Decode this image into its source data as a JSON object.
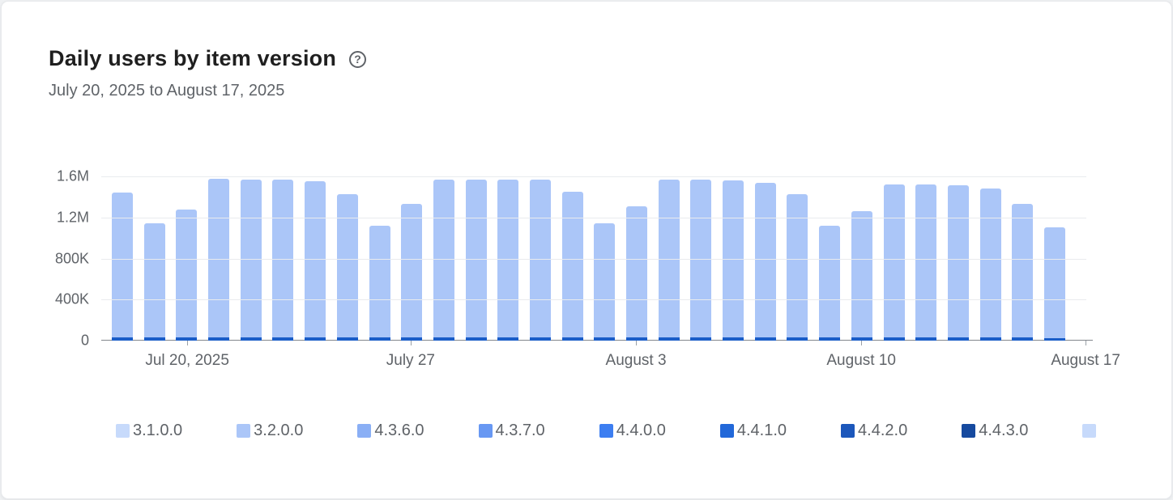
{
  "card": {
    "title": "Daily users by item version",
    "subtitle": "July 20, 2025 to August 17, 2025"
  },
  "chart_data": {
    "type": "bar",
    "stacked": true,
    "title": "Daily users by item version",
    "date_range_label": "July 20, 2025 to August 17, 2025",
    "ylim": [
      0,
      1600000
    ],
    "grid": true,
    "legend_position": "bottom",
    "colors": {
      "bar_light": "#abc6f8",
      "bar_dark_base": "#1a5dc8",
      "gridline": "#e9ebee",
      "baseline": "#82878c",
      "tick": "#9aa0a6"
    },
    "y_ticks": [
      {
        "value": 1600000,
        "label": "1.6M"
      },
      {
        "value": 1200000,
        "label": "1.2M"
      },
      {
        "value": 800000,
        "label": "800K"
      },
      {
        "value": 400000,
        "label": "400K"
      },
      {
        "value": 0,
        "label": "0"
      }
    ],
    "x_ticks": [
      {
        "label": "Jul 20, 2025",
        "position_pct": 8.7
      },
      {
        "label": "July 27",
        "position_pct": 31.3
      },
      {
        "label": "August 3",
        "position_pct": 54.1
      },
      {
        "label": "August 10",
        "position_pct": 76.9
      },
      {
        "label": "August 17",
        "position_pct": 99.6
      }
    ],
    "bars": [
      {
        "total": 1440000,
        "dark_base": 32000
      },
      {
        "total": 1140000,
        "dark_base": 30000
      },
      {
        "total": 1280000,
        "dark_base": 30000
      },
      {
        "total": 1580000,
        "dark_base": 34000
      },
      {
        "total": 1570000,
        "dark_base": 34000
      },
      {
        "total": 1570000,
        "dark_base": 34000
      },
      {
        "total": 1550000,
        "dark_base": 34000
      },
      {
        "total": 1430000,
        "dark_base": 32000
      },
      {
        "total": 1120000,
        "dark_base": 28000
      },
      {
        "total": 1330000,
        "dark_base": 30000
      },
      {
        "total": 1570000,
        "dark_base": 34000
      },
      {
        "total": 1570000,
        "dark_base": 34000
      },
      {
        "total": 1570000,
        "dark_base": 34000
      },
      {
        "total": 1570000,
        "dark_base": 34000
      },
      {
        "total": 1450000,
        "dark_base": 32000
      },
      {
        "total": 1140000,
        "dark_base": 28000
      },
      {
        "total": 1310000,
        "dark_base": 30000
      },
      {
        "total": 1570000,
        "dark_base": 34000
      },
      {
        "total": 1570000,
        "dark_base": 34000
      },
      {
        "total": 1560000,
        "dark_base": 34000
      },
      {
        "total": 1540000,
        "dark_base": 34000
      },
      {
        "total": 1430000,
        "dark_base": 32000
      },
      {
        "total": 1120000,
        "dark_base": 28000
      },
      {
        "total": 1260000,
        "dark_base": 30000
      },
      {
        "total": 1520000,
        "dark_base": 34000
      },
      {
        "total": 1520000,
        "dark_base": 34000
      },
      {
        "total": 1510000,
        "dark_base": 34000
      },
      {
        "total": 1480000,
        "dark_base": 32000
      },
      {
        "total": 1330000,
        "dark_base": 30000
      },
      {
        "total": 1100000,
        "dark_base": 26000
      }
    ],
    "legend": [
      {
        "label": "3.1.0.0",
        "color": "#c7dafb"
      },
      {
        "label": "3.2.0.0",
        "color": "#abc6f8"
      },
      {
        "label": "4.3.6.0",
        "color": "#8aaff5"
      },
      {
        "label": "4.3.7.0",
        "color": "#6898f3"
      },
      {
        "label": "4.4.0.0",
        "color": "#3d7ef1"
      },
      {
        "label": "4.4.1.0",
        "color": "#2268d9"
      },
      {
        "label": "4.4.2.0",
        "color": "#1c57bb"
      },
      {
        "label": "4.4.3.0",
        "color": "#164a9f"
      },
      {
        "label": "",
        "color": "#c7dafb"
      }
    ]
  }
}
